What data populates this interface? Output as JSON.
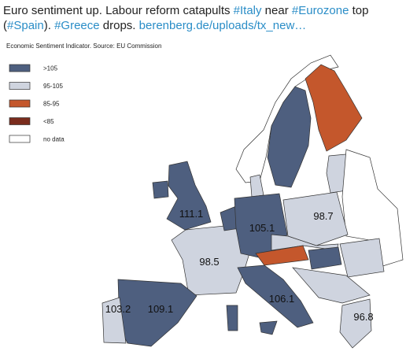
{
  "tweet": {
    "segments": [
      {
        "text": "Euro sentiment up. Labour reform catapults ",
        "link": false
      },
      {
        "text": "#Italy",
        "link": true
      },
      {
        "text": " near ",
        "link": false
      },
      {
        "text": "#Eurozone",
        "link": true
      },
      {
        "text": " top (",
        "link": false
      },
      {
        "text": "#Spain",
        "link": true
      },
      {
        "text": "). ",
        "link": false
      },
      {
        "text": "#Greece",
        "link": true
      },
      {
        "text": " drops. ",
        "link": false
      },
      {
        "text": "berenberg.de/uploads/tx_new…",
        "link": true
      }
    ]
  },
  "map": {
    "title": "Economic Sentiment Indicator. Source: EU Commission",
    "legend": [
      {
        "label": ">105",
        "color": "#4e5f7f"
      },
      {
        "label": "95-105",
        "color": "#cfd4df"
      },
      {
        "label": "85-95",
        "color": "#c4572c"
      },
      {
        "label": "<85",
        "color": "#7a2c1d"
      },
      {
        "label": "no data",
        "color": "#ffffff"
      }
    ],
    "labels": [
      111.1,
      105.1,
      98.7,
      98.5,
      103.2,
      109.1,
      106.1,
      96.8
    ]
  }
}
